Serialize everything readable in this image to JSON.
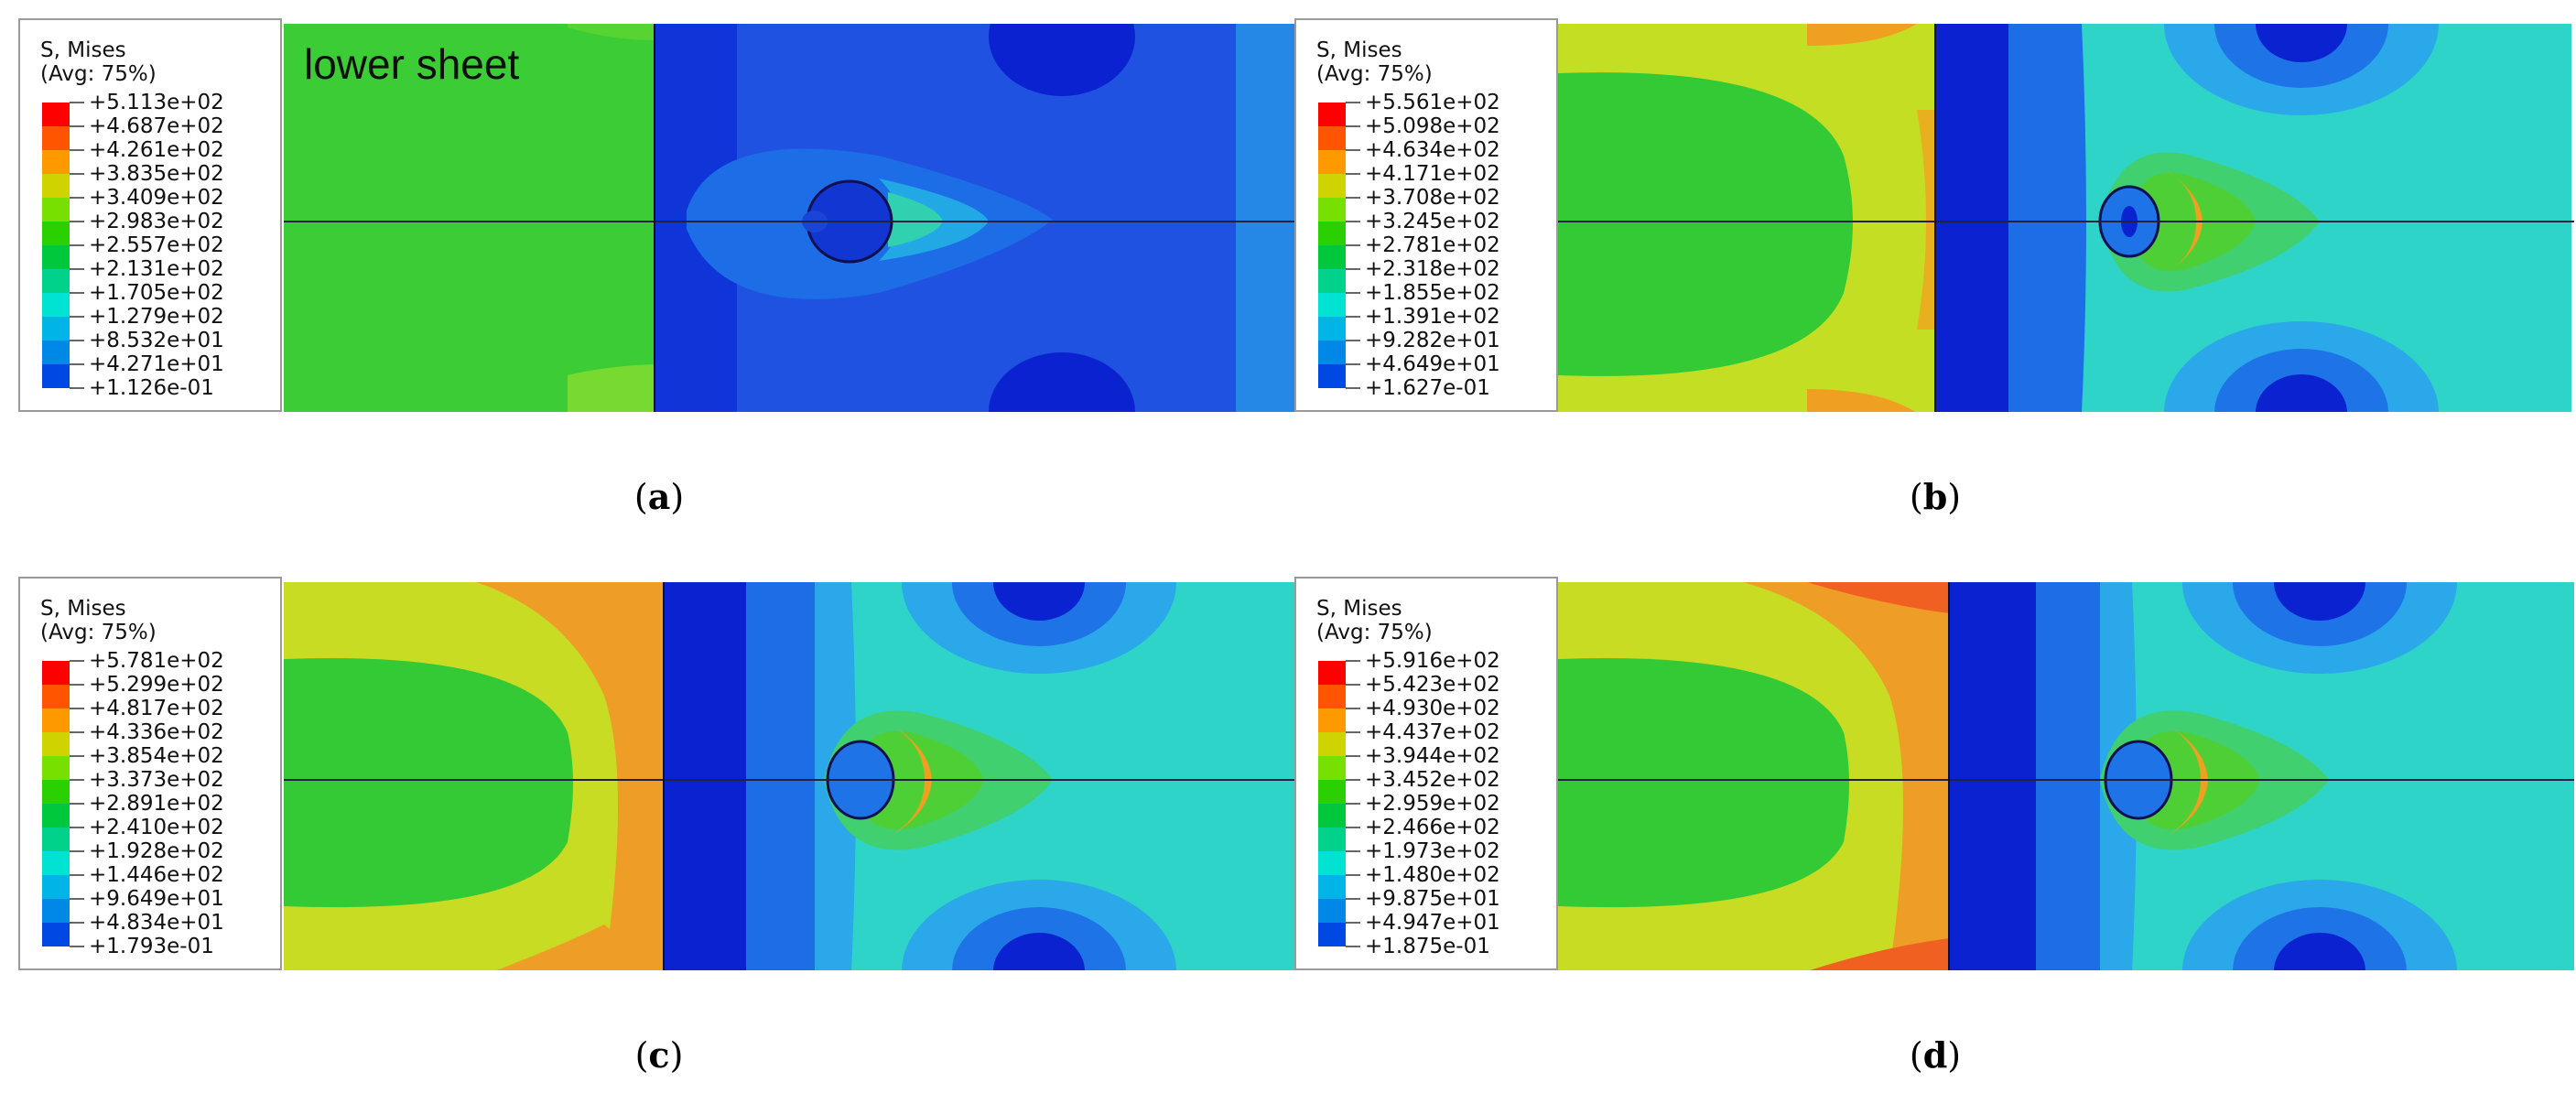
{
  "panels": [
    {
      "id": "a",
      "title_line1": "S, Mises",
      "title_line2": "(Avg: 75%)",
      "values": [
        "+5.113e+02",
        "+4.687e+02",
        "+4.261e+02",
        "+3.835e+02",
        "+3.409e+02",
        "+2.983e+02",
        "+2.557e+02",
        "+2.131e+02",
        "+1.705e+02",
        "+1.279e+02",
        "+8.532e+01",
        "+4.271e+01",
        "+1.126e-01"
      ],
      "sheet_label": "lower sheet",
      "caption_letter": "a"
    },
    {
      "id": "b",
      "title_line1": "S, Mises",
      "title_line2": "(Avg: 75%)",
      "values": [
        "+5.561e+02",
        "+5.098e+02",
        "+4.634e+02",
        "+4.171e+02",
        "+3.708e+02",
        "+3.245e+02",
        "+2.781e+02",
        "+2.318e+02",
        "+1.855e+02",
        "+1.391e+02",
        "+9.282e+01",
        "+4.649e+01",
        "+1.627e-01"
      ],
      "sheet_label": "",
      "caption_letter": "b"
    },
    {
      "id": "c",
      "title_line1": "S, Mises",
      "title_line2": "(Avg: 75%)",
      "values": [
        "+5.781e+02",
        "+5.299e+02",
        "+4.817e+02",
        "+4.336e+02",
        "+3.854e+02",
        "+3.373e+02",
        "+2.891e+02",
        "+2.410e+02",
        "+1.928e+02",
        "+1.446e+02",
        "+9.649e+01",
        "+4.834e+01",
        "+1.793e-01"
      ],
      "sheet_label": "",
      "caption_letter": "c"
    },
    {
      "id": "d",
      "title_line1": "S, Mises",
      "title_line2": "(Avg: 75%)",
      "values": [
        "+5.916e+02",
        "+5.423e+02",
        "+4.930e+02",
        "+4.437e+02",
        "+3.944e+02",
        "+3.452e+02",
        "+2.959e+02",
        "+2.466e+02",
        "+1.973e+02",
        "+1.480e+02",
        "+9.875e+01",
        "+4.947e+01",
        "+1.875e-01"
      ],
      "sheet_label": "",
      "caption_letter": "d"
    }
  ],
  "colors": {
    "scale": [
      "#ff0000",
      "#ff5500",
      "#ff9900",
      "#cfd400",
      "#77e000",
      "#2ad000",
      "#00c83c",
      "#00d28c",
      "#00e2d2",
      "#00b4e8",
      "#0088e6",
      "#0048e4",
      "#0000cc"
    ],
    "plate_blue": "#1f4fe0",
    "deep_blue": "#0a1fd2",
    "mid_blue": "#1e73e6",
    "light_blue": "#2aa8ea",
    "cyan": "#2fd4c8",
    "green": "#4fcf36",
    "yellow": "#c5e021",
    "orange": "#f0a020"
  }
}
